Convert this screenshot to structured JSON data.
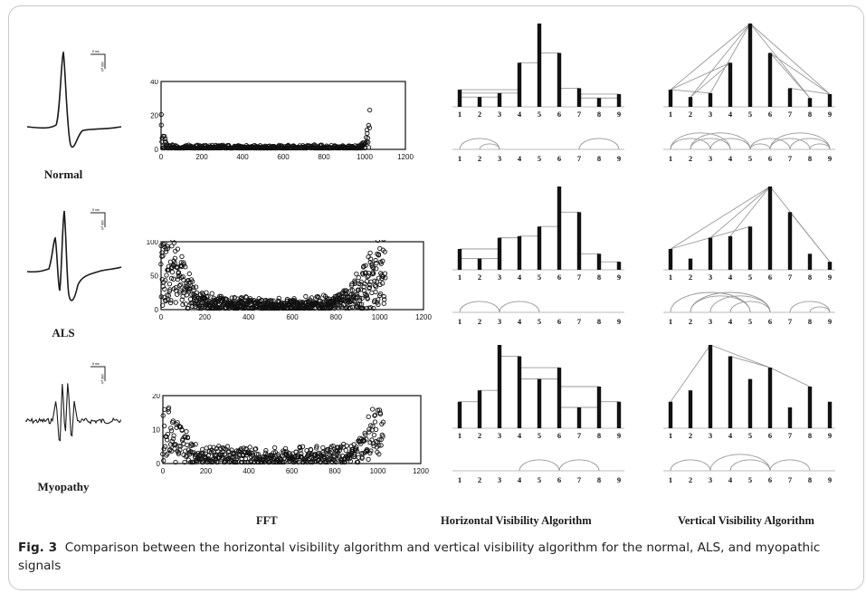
{
  "figure": {
    "number": "Fig. 3",
    "caption": "Comparison between the horizontal visibility algorithm and vertical visibility algorithm for the normal, ALS, and myopathic signals",
    "column_labels": {
      "fft": "FFT",
      "horizontal": "Horizontal  Visibility  Algorithm",
      "vertical": "Vertical  Visibility  Algorithm"
    },
    "scale_bar_labels": [
      "5 ms",
      "100 μV"
    ]
  },
  "rows": [
    {
      "label": "Normal",
      "emg_type": "biphasic-smooth",
      "fft_ylim": [
        0,
        40
      ],
      "fft_yticks": [
        "40",
        "20",
        "0"
      ],
      "hva_values": [
        3.5,
        2,
        2.8,
        9,
        17,
        11,
        3.8,
        1.8,
        2.6
      ],
      "hva_arcs": [
        [
          1,
          3
        ],
        [
          2,
          3
        ],
        [
          7,
          9
        ]
      ],
      "vva_arcs": [
        [
          1,
          3
        ],
        [
          1,
          4
        ],
        [
          2,
          4
        ],
        [
          2,
          5
        ],
        [
          3,
          5
        ],
        [
          5,
          6
        ],
        [
          5,
          7
        ],
        [
          6,
          8
        ],
        [
          6,
          9
        ],
        [
          7,
          9
        ],
        [
          8,
          9
        ]
      ]
    },
    {
      "label": "ALS",
      "emg_type": "polyphasic",
      "fft_ylim": [
        0,
        100
      ],
      "fft_yticks": [
        "100",
        "50",
        "0"
      ],
      "hva_values": [
        6.5,
        3.5,
        10,
        10.5,
        13.5,
        26,
        18,
        5,
        2.5
      ],
      "hva_arcs": [
        [
          1,
          3
        ],
        [
          3,
          5
        ]
      ],
      "vva_arcs": [
        [
          1,
          5
        ],
        [
          2,
          5
        ],
        [
          2,
          6
        ],
        [
          3,
          6
        ],
        [
          4,
          6
        ],
        [
          7,
          9
        ],
        [
          8,
          9
        ]
      ]
    },
    {
      "label": "Myopathy",
      "emg_type": "noisy",
      "fft_ylim": [
        0,
        20
      ],
      "fft_yticks": [
        "20",
        "10",
        "0"
      ],
      "hva_values": [
        7,
        10,
        22,
        19,
        13,
        16,
        5.5,
        11,
        7
      ],
      "hva_arcs": [
        [
          4,
          6
        ],
        [
          6,
          8
        ]
      ],
      "vva_arcs": [
        [
          1,
          3
        ],
        [
          3,
          6
        ],
        [
          4,
          6
        ],
        [
          6,
          8
        ]
      ]
    }
  ],
  "fft_chart_data": {
    "type": "scatter",
    "xlim": [
      0,
      1200
    ],
    "xticks": [
      "0",
      "200",
      "400",
      "600",
      "800",
      "1000",
      "1200"
    ]
  },
  "visibility_chart_data": {
    "type": "bar",
    "categories": [
      "1",
      "2",
      "3",
      "4",
      "5",
      "6",
      "7",
      "8",
      "9"
    ]
  }
}
